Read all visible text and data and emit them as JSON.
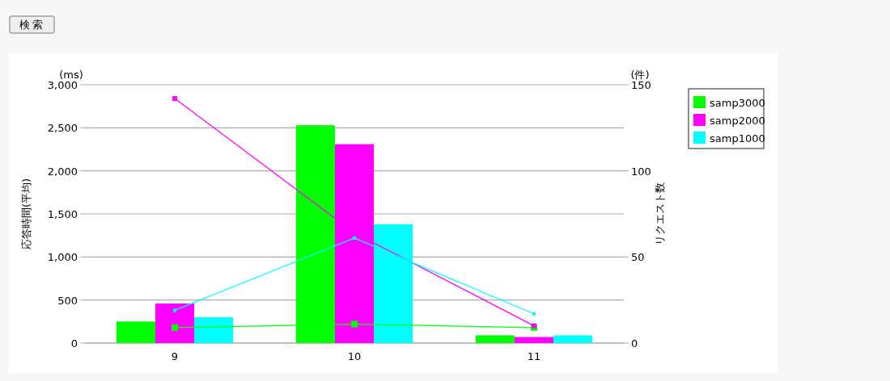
{
  "chart_data": {
    "type": "bar",
    "ylabel": "応答時間(平均)",
    "y2label": "リクエスト数",
    "annotations": [
      "検索",
      "(ms)",
      "(件)"
    ],
    "categories": [
      "9",
      "10",
      "11"
    ],
    "series": [
      {
        "name": "samp3000",
        "color": "#00ff00",
        "values": [
          250,
          2530,
          90
        ]
      },
      {
        "name": "samp2000",
        "color": "#ff00ff",
        "values": [
          460,
          2310,
          70
        ]
      },
      {
        "name": "samp1000",
        "color": "#00ffff",
        "values": [
          300,
          1380,
          90
        ]
      },
      {
        "type": "line",
        "axis": "y2",
        "color": "#00ff00",
        "values": [
          9,
          11,
          9
        ]
      },
      {
        "type": "line",
        "axis": "y2",
        "color": "#ff00ff",
        "values": [
          142,
          64,
          10
        ]
      },
      {
        "type": "line",
        "axis": "y2",
        "color": "#00ffff",
        "values": [
          19,
          61,
          17
        ]
      }
    ],
    "ylim": [
      0,
      3000
    ],
    "yticks": [
      {
        "value": 0,
        "label": "0"
      },
      {
        "value": 500,
        "label": "500"
      },
      {
        "value": 1000,
        "label": "1,000"
      },
      {
        "value": 1500,
        "label": "1,500"
      },
      {
        "value": 2000,
        "label": "2,000"
      },
      {
        "value": 2500,
        "label": "2,500"
      },
      {
        "value": 3000,
        "label": "3,000"
      }
    ],
    "y2lim": [
      0,
      150
    ],
    "y2ticks": [
      0,
      50,
      100,
      150
    ],
    "grid": "y",
    "legend": "right",
    "marker": "square"
  }
}
